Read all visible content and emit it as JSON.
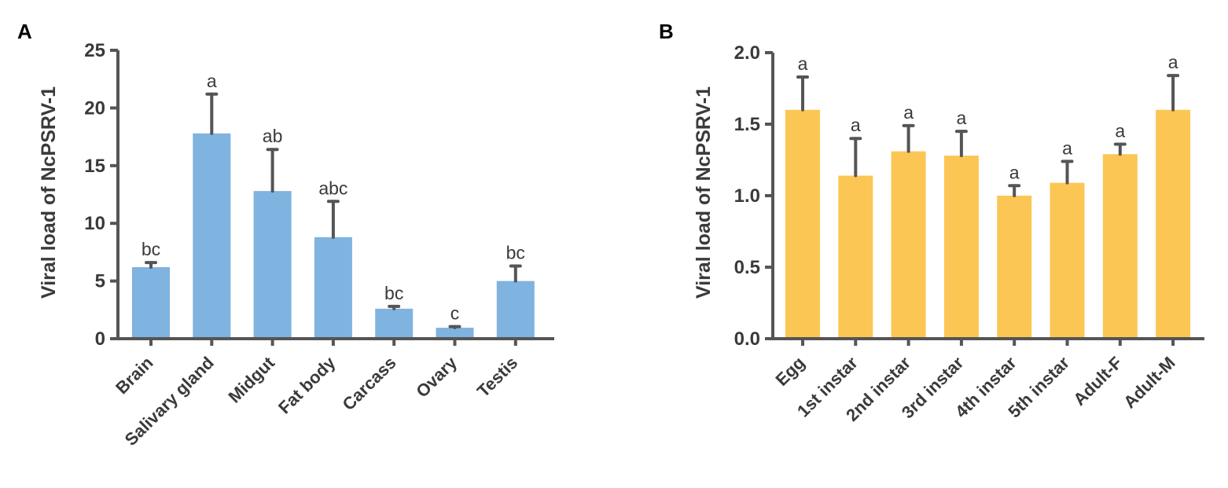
{
  "chart_data": [
    {
      "type": "bar",
      "panel_label": "A",
      "ylabel": "Viral load of NcPSRV-1",
      "xlabel": "",
      "ylim": [
        0,
        25
      ],
      "yticks": [
        "0",
        "5",
        "10",
        "15",
        "20",
        "25"
      ],
      "categories": [
        "Brain",
        "Salivary gland",
        "Midgut",
        "Fat body",
        "Carcass",
        "Ovary",
        "Testis"
      ],
      "values": [
        6.2,
        17.8,
        12.8,
        8.8,
        2.6,
        0.95,
        5.0
      ],
      "errors": [
        0.4,
        3.4,
        3.6,
        3.1,
        0.2,
        0.1,
        1.3
      ],
      "significance": [
        "bc",
        "a",
        "ab",
        "abc",
        "bc",
        "c",
        "bc"
      ],
      "color": "#7fb3e0"
    },
    {
      "type": "bar",
      "panel_label": "B",
      "ylabel": "Viral load of NcPSRV-1",
      "xlabel": "",
      "ylim": [
        0,
        2.0
      ],
      "yticks": [
        "0.0",
        "0.5",
        "1.0",
        "1.5",
        "2.0"
      ],
      "categories": [
        "Egg",
        "1st instar",
        "2nd instar",
        "3rd instar",
        "4th instar",
        "5th instar",
        "Adult-F",
        "Adult-M"
      ],
      "values": [
        1.6,
        1.14,
        1.31,
        1.28,
        1.0,
        1.09,
        1.29,
        1.6
      ],
      "errors": [
        0.23,
        0.26,
        0.18,
        0.17,
        0.07,
        0.15,
        0.07,
        0.24
      ],
      "significance": [
        "a",
        "a",
        "a",
        "a",
        "a",
        "a",
        "a",
        "a"
      ],
      "color": "#fbc654"
    }
  ]
}
